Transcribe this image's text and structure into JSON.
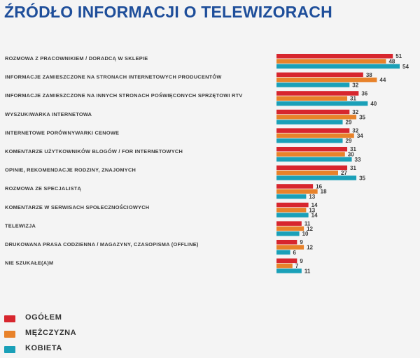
{
  "chart_data": {
    "type": "bar",
    "orientation": "horizontal",
    "title": "ŹRÓDŁO INFORMACJI O TELEWIZORACH",
    "xlabel": "",
    "ylabel": "",
    "xlim": [
      0,
      54
    ],
    "grid": false,
    "legend_position": "bottom-left",
    "categories": [
      "ROZMOWA Z PRACOWNIKIEM / DORADCĄ W SKLEPIE",
      "INFORMACJE ZAMIESZCZONE NA STRONACH INTERNETOWYCH PRODUCENTÓW",
      "INFORMACJE ZAMIESZCZONE NA INNYCH STRONACH POŚWIĘCONYCH SPRZĘTOWI RTV",
      "WYSZUKIWARKA INTERNETOWA",
      "INTERNETOWE PORÓWNYWARKI CENOWE",
      "KOMENTARZE UŻYTKOWNIKÓW BLOGÓW / FOR INTERNETOWYCH",
      "OPINIE, REKOMENDACJE RODZINY, ZNAJOMYCH",
      "ROZMOWA ZE SPECJALISTĄ",
      "KOMENTARZE W SERWISACH SPOŁECZNOŚCIOWYCH",
      "TELEWIZJA",
      "DRUKOWANA PRASA CODZIENNA / MAGAZYNY, CZASOPISMA (OFFLINE)",
      "NIE SZUKAŁE(A)M"
    ],
    "series": [
      {
        "name": "OGÓŁEM",
        "color": "#d7262e",
        "values": [
          51,
          38,
          36,
          32,
          32,
          31,
          31,
          16,
          14,
          11,
          9,
          9
        ]
      },
      {
        "name": "MĘŻCZYZNA",
        "color": "#e8822a",
        "values": [
          48,
          44,
          31,
          35,
          34,
          30,
          27,
          18,
          13,
          12,
          12,
          7
        ]
      },
      {
        "name": "KOBIETA",
        "color": "#1aa0b8",
        "values": [
          54,
          32,
          40,
          29,
          29,
          33,
          35,
          13,
          14,
          10,
          6,
          11
        ]
      }
    ]
  }
}
